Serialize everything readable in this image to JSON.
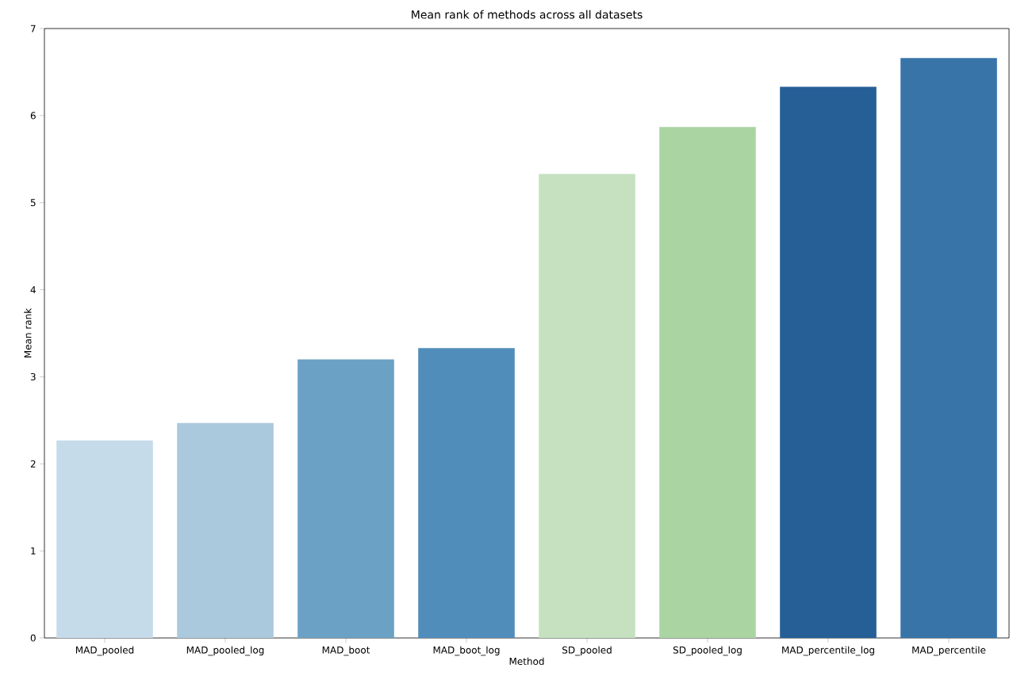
{
  "chart_data": {
    "type": "bar",
    "title": "Mean rank of methods across all datasets",
    "xlabel": "Method",
    "ylabel": "Mean rank",
    "categories": [
      "MAD_pooled",
      "MAD_pooled_log",
      "MAD_boot",
      "MAD_boot_log",
      "SD_pooled",
      "SD_pooled_log",
      "MAD_percentile_log",
      "MAD_percentile"
    ],
    "values": [
      2.27,
      2.47,
      3.2,
      3.33,
      5.33,
      5.87,
      6.33,
      6.66
    ],
    "colors": [
      "#c6dbea",
      "#abc9dc",
      "#6aa1c5",
      "#518dba",
      "#c5e1c0",
      "#abd4a3",
      "#265f96",
      "#3874a8"
    ],
    "ylim": [
      0,
      7
    ],
    "yticks": [
      0,
      1,
      2,
      3,
      4,
      5,
      6,
      7
    ]
  }
}
